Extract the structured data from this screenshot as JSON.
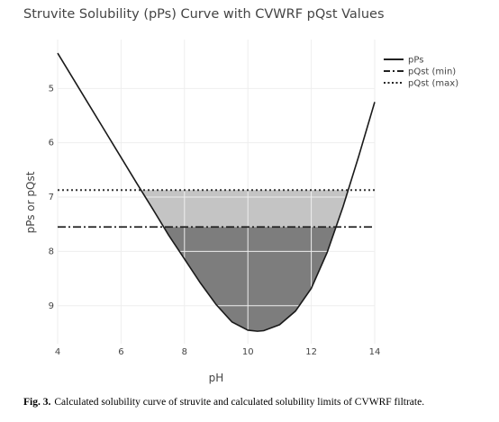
{
  "chart_data": {
    "type": "line",
    "title": "Struvite Solubility (pPs) Curve with CVWRF pQst Values",
    "xlabel": "pH",
    "ylabel": "pPs or pQst",
    "xlim": [
      4,
      14
    ],
    "ylim": [
      9.7,
      4.1
    ],
    "y_reversed": true,
    "grid": true,
    "legend_position": "top-right",
    "x_ticks": [
      4,
      6,
      8,
      10,
      12,
      14
    ],
    "y_ticks": [
      5,
      6,
      7,
      8,
      9
    ],
    "series": [
      {
        "name": "pPs",
        "style": "solid",
        "color": "#222222",
        "x": [
          4.0,
          4.5,
          5.0,
          5.5,
          6.0,
          6.5,
          7.0,
          7.5,
          8.0,
          8.5,
          9.0,
          9.5,
          10.0,
          10.3,
          10.5,
          11.0,
          11.5,
          12.0,
          12.5,
          13.0,
          13.5,
          14.0
        ],
        "y": [
          4.35,
          4.83,
          5.31,
          5.79,
          6.27,
          6.75,
          7.22,
          7.7,
          8.14,
          8.58,
          8.98,
          9.3,
          9.45,
          9.47,
          9.46,
          9.35,
          9.1,
          8.68,
          8.02,
          7.18,
          6.24,
          5.25
        ]
      },
      {
        "name": "pQst (min)",
        "style": "dashdot",
        "color": "#222222",
        "y": 7.55
      },
      {
        "name": "pQst (max)",
        "style": "dot",
        "color": "#222222",
        "y": 6.87
      }
    ],
    "fill_colors": {
      "upper_band": "#c4c4c4",
      "lower_region": "#7d7d7d"
    }
  },
  "caption": {
    "label": "Fig. 3.",
    "text": "Calculated solubility curve of struvite and calculated solubility limits of CVWRF filtrate."
  }
}
